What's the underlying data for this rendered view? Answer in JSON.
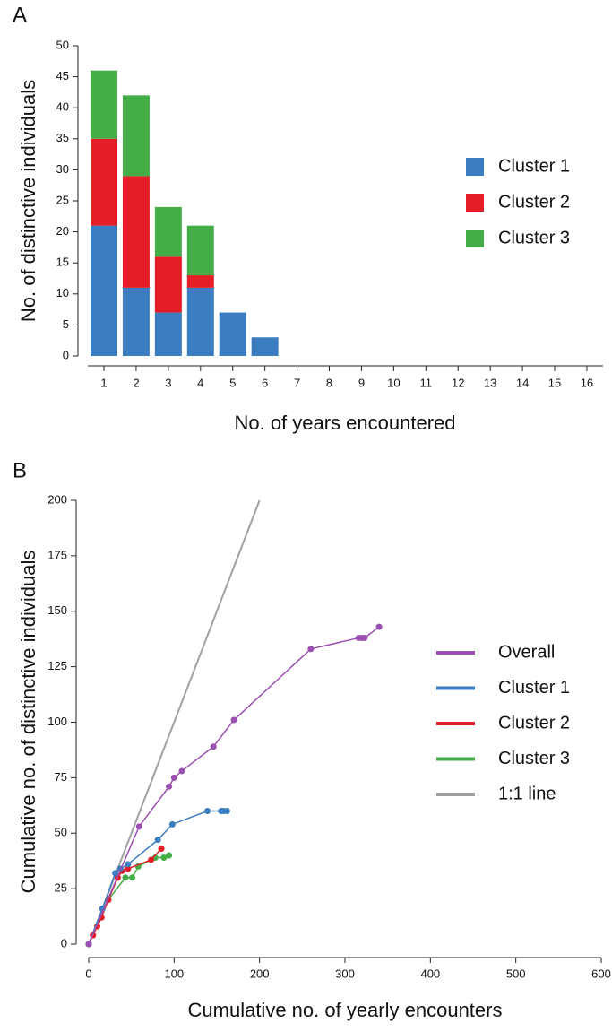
{
  "chart_data": [
    {
      "type": "bar",
      "stacked": true,
      "panel_label": "A",
      "x_label": "No. of years encountered",
      "y_label": "No. of distinctive individuals",
      "categories": [
        "1",
        "2",
        "3",
        "4",
        "5",
        "6",
        "7",
        "8",
        "9",
        "10",
        "11",
        "12",
        "13",
        "14",
        "15",
        "16"
      ],
      "series": [
        {
          "name": "Cluster 1",
          "color": "#3a7dc0",
          "values": [
            21,
            11,
            7,
            11,
            7,
            3,
            0,
            0,
            0,
            0,
            0,
            0,
            0,
            0,
            0,
            0
          ]
        },
        {
          "name": "Cluster 2",
          "color": "#e41e26",
          "values": [
            14,
            18,
            9,
            2,
            0,
            0,
            0,
            0,
            0,
            0,
            0,
            0,
            0,
            0,
            0,
            0
          ]
        },
        {
          "name": "Cluster 3",
          "color": "#44ad48",
          "values": [
            11,
            13,
            8,
            8,
            0,
            0,
            0,
            0,
            0,
            0,
            0,
            0,
            0,
            0,
            0,
            0
          ]
        }
      ],
      "ylim": [
        0,
        50
      ],
      "yticks": [
        0,
        5,
        10,
        15,
        20,
        25,
        30,
        35,
        40,
        45,
        50
      ]
    },
    {
      "type": "line",
      "panel_label": "B",
      "x_label": "Cumulative no. of yearly encounters",
      "y_label": "Cumulative no. of distinctive individuals",
      "series": [
        {
          "name": "Overall",
          "color": "#9b4fb0",
          "markers": true,
          "x": [
            0,
            59,
            94,
            100,
            109,
            146,
            170,
            260,
            316,
            320,
            323,
            340
          ],
          "values": [
            0,
            53,
            71,
            75,
            78,
            89,
            101,
            133,
            138,
            138,
            138,
            143
          ]
        },
        {
          "name": "Cluster 1",
          "color": "#3a7dc0",
          "markers": true,
          "x": [
            0,
            16,
            31,
            37,
            46,
            81,
            98,
            139,
            155,
            158,
            162
          ],
          "values": [
            0,
            16,
            32,
            34,
            36,
            47,
            54,
            60,
            60,
            60,
            60
          ]
        },
        {
          "name": "Cluster 2",
          "color": "#e41e26",
          "markers": true,
          "x": [
            0,
            5,
            10,
            15,
            23,
            34,
            39,
            46,
            73,
            85
          ],
          "values": [
            0,
            4,
            8,
            12,
            20,
            30,
            33,
            34,
            38,
            43
          ]
        },
        {
          "name": "Cluster 3",
          "color": "#44ad48",
          "markers": true,
          "x": [
            0,
            23,
            43,
            51,
            58,
            78,
            88,
            94
          ],
          "values": [
            0,
            20,
            30,
            30,
            35,
            39,
            39,
            40
          ]
        },
        {
          "name": "1:1 line",
          "color": "#a0a0a0",
          "markers": false,
          "x": [
            0,
            200
          ],
          "values": [
            0,
            200
          ]
        }
      ],
      "xlim": [
        0,
        600
      ],
      "xticks": [
        0,
        100,
        200,
        300,
        400,
        500,
        600
      ],
      "ylim": [
        0,
        200
      ],
      "yticks": [
        0,
        25,
        50,
        75,
        100,
        125,
        150,
        175,
        200
      ]
    }
  ]
}
